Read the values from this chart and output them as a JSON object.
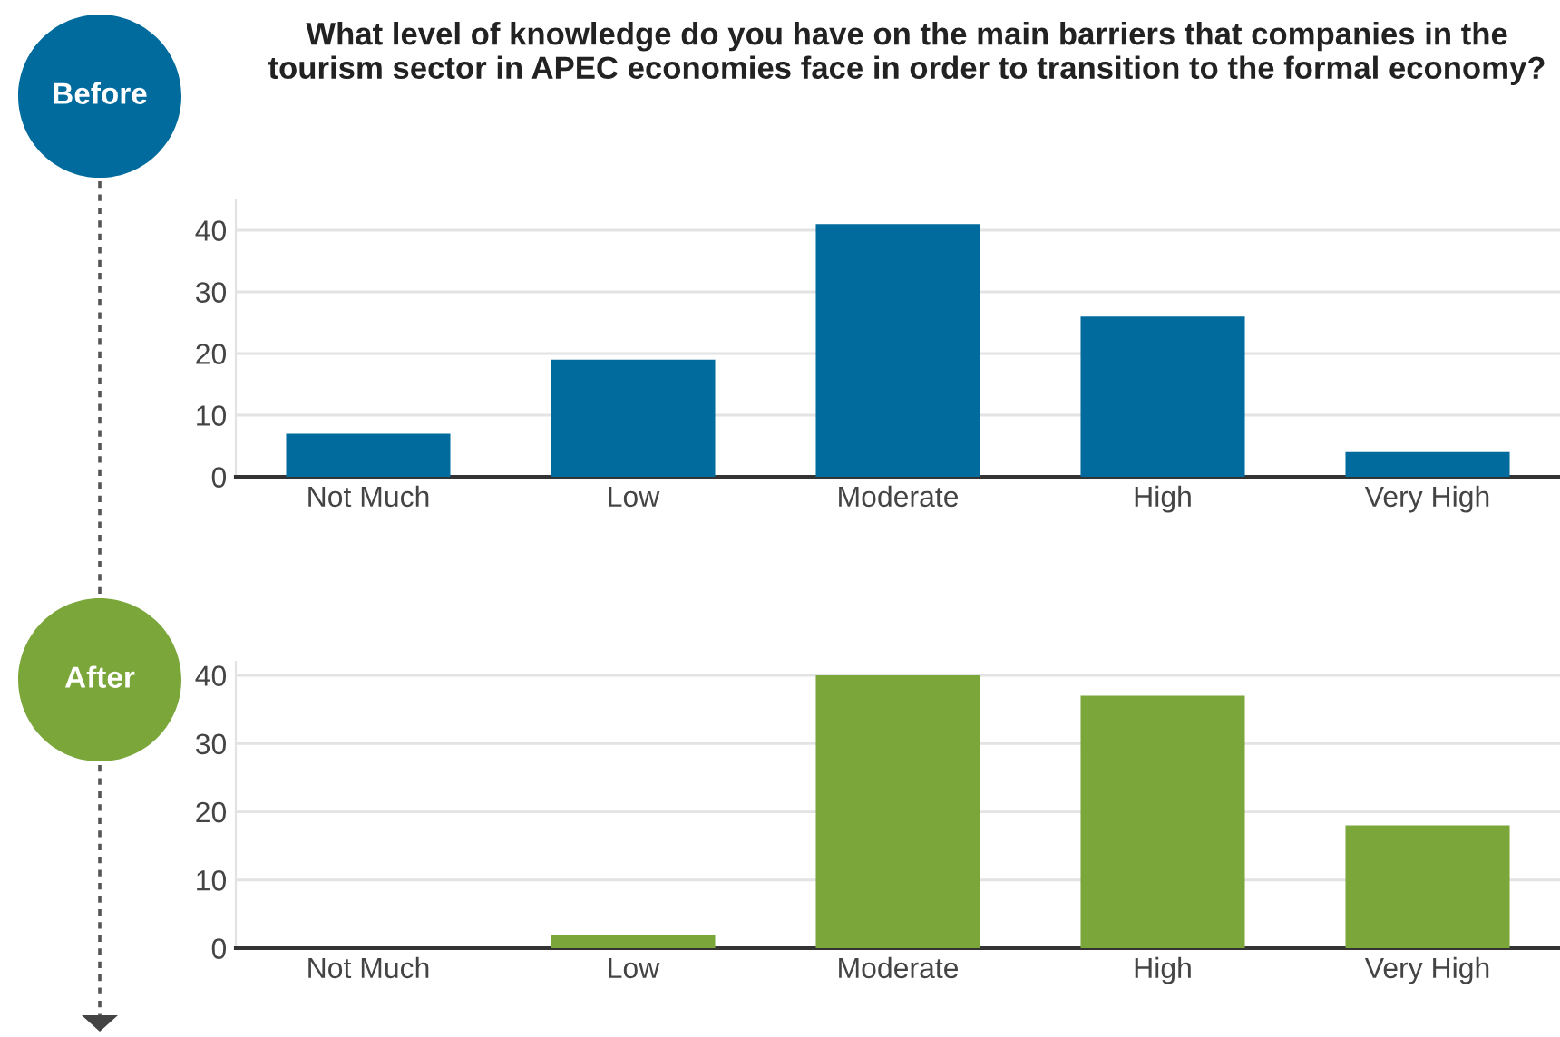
{
  "chart_data": [
    {
      "type": "bar",
      "title": "What level of knowledge do you have on the main barriers that companies in the tourism sector in APEC economies face in order to transition to the formal economy?",
      "annotations": [
        "Before"
      ],
      "categories": [
        "Not Much",
        "Low",
        "Moderate",
        "High",
        "Very High"
      ],
      "values": [
        7,
        19,
        41,
        26,
        4
      ],
      "color": "#006b9c",
      "ylim": [
        0,
        45
      ],
      "yticks": [
        0,
        10,
        20,
        30,
        40
      ],
      "grid": "y"
    },
    {
      "type": "bar",
      "annotations": [
        "After"
      ],
      "categories": [
        "Not Much",
        "Low",
        "Moderate",
        "High",
        "Very High"
      ],
      "values": [
        0,
        2,
        40,
        37,
        18
      ],
      "color": "#7ba63a",
      "ylim": [
        0,
        42
      ],
      "yticks": [
        0,
        10,
        20,
        30,
        40
      ],
      "grid": "y"
    }
  ]
}
